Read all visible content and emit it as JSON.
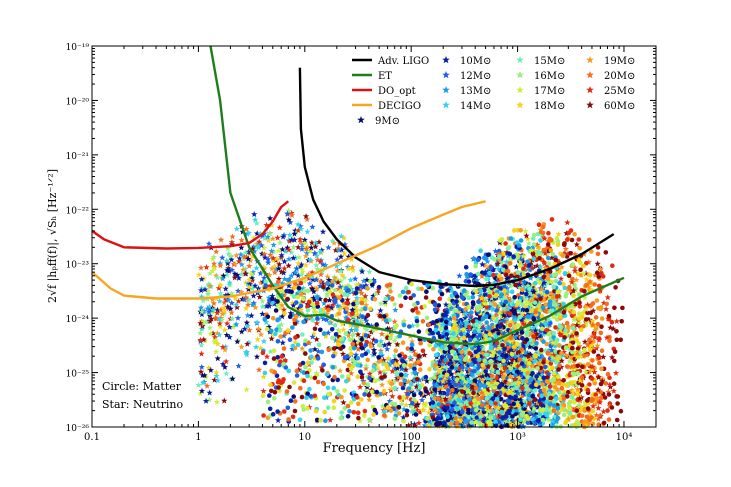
{
  "chart_data": {
    "type": "scatter",
    "title": "",
    "xlabel": "Frequency [Hz]",
    "ylabel": "2√f |hₚff(f)|,  √Sₕ  [Hz⁻¹ᐟ²]",
    "xscale": "log",
    "yscale": "log",
    "xlim": [
      0.1,
      20000
    ],
    "ylim": [
      1e-26,
      1e-19
    ],
    "x_ticks": [
      {
        "value": 0.1,
        "label": "0.1"
      },
      {
        "value": 1,
        "label": "1"
      },
      {
        "value": 10,
        "label": "10"
      },
      {
        "value": 100,
        "label": "100"
      },
      {
        "value": 1000,
        "label": "10³"
      },
      {
        "value": 10000,
        "label": "10⁴"
      }
    ],
    "y_ticks": [
      {
        "value": 1e-26,
        "label": "10⁻²⁶"
      },
      {
        "value": 1e-25,
        "label": "10⁻²⁵"
      },
      {
        "value": 1e-24,
        "label": "10⁻²⁴"
      },
      {
        "value": 1e-23,
        "label": "10⁻²³"
      },
      {
        "value": 1e-22,
        "label": "10⁻²²"
      },
      {
        "value": 1e-21,
        "label": "10⁻²¹"
      },
      {
        "value": 1e-20,
        "label": "10⁻²⁰"
      },
      {
        "value": 1e-19,
        "label": "10⁻¹⁹"
      }
    ],
    "curves": [
      {
        "name": "Adv. LIGO",
        "color": "#000000",
        "points": [
          [
            9,
            4e-20
          ],
          [
            9.2,
            3e-21
          ],
          [
            10,
            6e-22
          ],
          [
            12,
            1.5e-22
          ],
          [
            15,
            6e-23
          ],
          [
            20,
            2.8e-23
          ],
          [
            30,
            1.3e-23
          ],
          [
            50,
            7e-24
          ],
          [
            100,
            5e-24
          ],
          [
            200,
            4.2e-24
          ],
          [
            400,
            3.9e-24
          ],
          [
            600,
            4.1e-24
          ],
          [
            1000,
            5e-24
          ],
          [
            2000,
            8e-24
          ],
          [
            4000,
            1.5e-23
          ],
          [
            8000,
            3.5e-23
          ]
        ]
      },
      {
        "name": "ET",
        "color": "#1e7e1e",
        "points": [
          [
            1.3,
            1e-19
          ],
          [
            1.6,
            1e-20
          ],
          [
            2,
            2e-22
          ],
          [
            3,
            2e-23
          ],
          [
            5,
            4e-24
          ],
          [
            7,
            1.6e-24
          ],
          [
            10,
            1.1e-24
          ],
          [
            15,
            1.15e-24
          ],
          [
            20,
            9e-25
          ],
          [
            40,
            7e-25
          ],
          [
            100,
            4.8e-25
          ],
          [
            200,
            3.6e-25
          ],
          [
            400,
            3.3e-25
          ],
          [
            600,
            3.8e-25
          ],
          [
            1000,
            6e-25
          ],
          [
            2000,
            1.1e-24
          ],
          [
            4000,
            2.5e-24
          ],
          [
            10000,
            5.5e-24
          ]
        ]
      },
      {
        "name": "DO_opt",
        "color": "#dd1111",
        "points": [
          [
            0.1,
            4e-23
          ],
          [
            0.13,
            2.8e-23
          ],
          [
            0.2,
            2e-23
          ],
          [
            0.5,
            1.9e-23
          ],
          [
            1,
            1.95e-23
          ],
          [
            2,
            2.1e-23
          ],
          [
            3,
            2.4e-23
          ],
          [
            4,
            3.5e-23
          ],
          [
            5,
            6e-23
          ],
          [
            6,
            1.1e-22
          ],
          [
            7,
            1.4e-22
          ]
        ]
      },
      {
        "name": "DECIGO",
        "color": "#f5a623",
        "points": [
          [
            0.1,
            7e-24
          ],
          [
            0.15,
            3.5e-24
          ],
          [
            0.2,
            2.6e-24
          ],
          [
            0.4,
            2.3e-24
          ],
          [
            1,
            2.3e-24
          ],
          [
            2,
            2.5e-24
          ],
          [
            5,
            3.5e-24
          ],
          [
            10,
            5.5e-24
          ],
          [
            20,
            1e-23
          ],
          [
            50,
            2.2e-23
          ],
          [
            100,
            4.5e-23
          ],
          [
            200,
            8e-23
          ],
          [
            300,
            1.1e-22
          ],
          [
            500,
            1.4e-22
          ]
        ]
      }
    ],
    "scatter_series": [
      {
        "name": "9M⊙",
        "color": "#0b0b6b"
      },
      {
        "name": "10M⊙",
        "color": "#0a1fa8"
      },
      {
        "name": "12M⊙",
        "color": "#1f5fe0"
      },
      {
        "name": "13M⊙",
        "color": "#1e9be8"
      },
      {
        "name": "14M⊙",
        "color": "#35d2e8"
      },
      {
        "name": "15M⊙",
        "color": "#6ff0b8"
      },
      {
        "name": "16M⊙",
        "color": "#9cf07a"
      },
      {
        "name": "17M⊙",
        "color": "#d2ee3c"
      },
      {
        "name": "18M⊙",
        "color": "#f6d21c"
      },
      {
        "name": "19M⊙",
        "color": "#f79a22"
      },
      {
        "name": "20M⊙",
        "color": "#f56c1c"
      },
      {
        "name": "25M⊙",
        "color": "#e02a12"
      },
      {
        "name": "60M⊙",
        "color": "#8a0a0a"
      }
    ],
    "legend_position": "top-right",
    "annotations": [
      "Circle: Matter",
      "Star: Neutrino"
    ]
  },
  "colors": {
    "axis": "#000000",
    "background": "#ffffff"
  }
}
